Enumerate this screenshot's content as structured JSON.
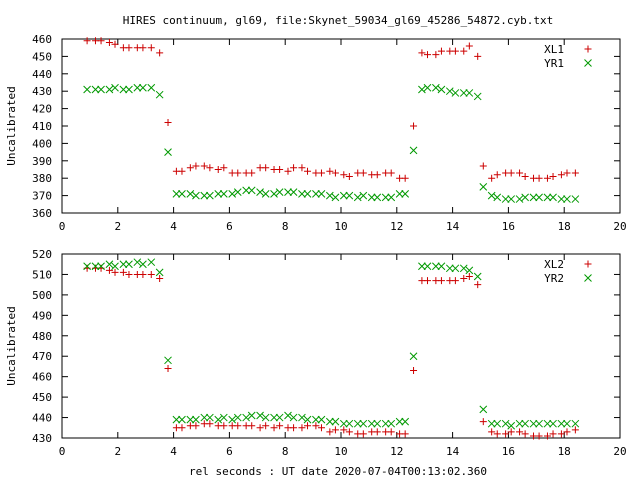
{
  "title": "HIRES continuum, gl69, file:Skynet_59034_gl69_45286_54872.cyb.txt",
  "xlabel": "rel seconds : UT date 2020-07-04T00:13:02.360",
  "chart_data": [
    {
      "type": "scatter",
      "ylabel": "Uncalibrated",
      "xlim": [
        0,
        20
      ],
      "ylim": [
        360,
        460
      ],
      "xticks": [
        0,
        2,
        4,
        6,
        8,
        10,
        12,
        14,
        16,
        18,
        20
      ],
      "yticks": [
        360,
        370,
        380,
        390,
        400,
        410,
        420,
        430,
        440,
        450,
        460
      ],
      "grid": false,
      "legend": "top-right",
      "series": [
        {
          "name": "XL1",
          "color": "#cc0000",
          "marker": "plus",
          "x": [
            0.9,
            1.2,
            1.4,
            1.7,
            1.9,
            2.2,
            2.4,
            2.7,
            2.9,
            3.2,
            3.5,
            3.8,
            4.1,
            4.3,
            4.6,
            4.8,
            5.1,
            5.3,
            5.6,
            5.8,
            6.1,
            6.3,
            6.6,
            6.8,
            7.1,
            7.3,
            7.6,
            7.8,
            8.1,
            8.3,
            8.6,
            8.8,
            9.1,
            9.3,
            9.6,
            9.8,
            10.1,
            10.3,
            10.6,
            10.8,
            11.1,
            11.3,
            11.6,
            11.8,
            12.1,
            12.3,
            12.6,
            12.9,
            13.1,
            13.4,
            13.6,
            13.9,
            14.1,
            14.4,
            14.6,
            14.9,
            15.1,
            15.4,
            15.6,
            15.9,
            16.1,
            16.4,
            16.6,
            16.9,
            17.1,
            17.4,
            17.6,
            17.9,
            18.1,
            18.4
          ],
          "y": [
            459,
            459,
            459,
            458,
            457,
            455,
            455,
            455,
            455,
            455,
            452,
            412,
            384,
            384,
            386,
            387,
            387,
            386,
            385,
            386,
            383,
            383,
            383,
            383,
            386,
            386,
            385,
            385,
            384,
            386,
            386,
            384,
            383,
            383,
            384,
            383,
            382,
            381,
            383,
            383,
            382,
            382,
            383,
            383,
            380,
            380,
            410,
            452,
            451,
            451,
            453,
            453,
            453,
            453,
            456,
            450,
            387,
            380,
            382,
            383,
            383,
            383,
            381,
            380,
            380,
            380,
            381,
            382,
            383,
            383
          ]
        },
        {
          "name": "YR1",
          "color": "#009900",
          "marker": "x",
          "x": [
            0.9,
            1.2,
            1.4,
            1.7,
            1.9,
            2.2,
            2.4,
            2.7,
            2.9,
            3.2,
            3.5,
            3.8,
            4.1,
            4.3,
            4.6,
            4.8,
            5.1,
            5.3,
            5.6,
            5.8,
            6.1,
            6.3,
            6.6,
            6.8,
            7.1,
            7.3,
            7.6,
            7.8,
            8.1,
            8.3,
            8.6,
            8.8,
            9.1,
            9.3,
            9.6,
            9.8,
            10.1,
            10.3,
            10.6,
            10.8,
            11.1,
            11.3,
            11.6,
            11.8,
            12.1,
            12.3,
            12.6,
            12.9,
            13.1,
            13.4,
            13.6,
            13.9,
            14.1,
            14.4,
            14.6,
            14.9,
            15.1,
            15.4,
            15.6,
            15.9,
            16.1,
            16.4,
            16.6,
            16.9,
            17.1,
            17.4,
            17.6,
            17.9,
            18.1,
            18.4
          ],
          "y": [
            431,
            431,
            431,
            431,
            432,
            431,
            431,
            432,
            432,
            432,
            428,
            395,
            371,
            371,
            371,
            370,
            370,
            370,
            371,
            371,
            371,
            372,
            373,
            373,
            372,
            371,
            371,
            372,
            372,
            372,
            371,
            371,
            371,
            371,
            370,
            369,
            370,
            370,
            369,
            370,
            369,
            369,
            369,
            369,
            371,
            371,
            396,
            431,
            432,
            432,
            431,
            430,
            429,
            429,
            429,
            427,
            375,
            370,
            369,
            368,
            368,
            368,
            369,
            369,
            369,
            369,
            369,
            368,
            368,
            368
          ]
        }
      ]
    },
    {
      "type": "scatter",
      "ylabel": "Uncalibrated",
      "xlim": [
        0,
        20
      ],
      "ylim": [
        430,
        520
      ],
      "xticks": [
        0,
        2,
        4,
        6,
        8,
        10,
        12,
        14,
        16,
        18,
        20
      ],
      "yticks": [
        430,
        440,
        450,
        460,
        470,
        480,
        490,
        500,
        510,
        520
      ],
      "grid": false,
      "legend": "top-right",
      "series": [
        {
          "name": "XL2",
          "color": "#cc0000",
          "marker": "plus",
          "x": [
            0.9,
            1.2,
            1.4,
            1.7,
            1.9,
            2.2,
            2.4,
            2.7,
            2.9,
            3.2,
            3.5,
            3.8,
            4.1,
            4.3,
            4.6,
            4.8,
            5.1,
            5.3,
            5.6,
            5.8,
            6.1,
            6.3,
            6.6,
            6.8,
            7.1,
            7.3,
            7.6,
            7.8,
            8.1,
            8.3,
            8.6,
            8.8,
            9.1,
            9.3,
            9.6,
            9.8,
            10.1,
            10.3,
            10.6,
            10.8,
            11.1,
            11.3,
            11.6,
            11.8,
            12.1,
            12.3,
            12.6,
            12.9,
            13.1,
            13.4,
            13.6,
            13.9,
            14.1,
            14.4,
            14.6,
            14.9,
            15.1,
            15.4,
            15.6,
            15.9,
            16.1,
            16.4,
            16.6,
            16.9,
            17.1,
            17.4,
            17.6,
            17.9,
            18.1,
            18.4
          ],
          "y": [
            513,
            513,
            513,
            512,
            511,
            511,
            510,
            510,
            510,
            510,
            508,
            464,
            435,
            435,
            436,
            436,
            437,
            437,
            436,
            436,
            436,
            436,
            436,
            436,
            435,
            436,
            435,
            436,
            435,
            435,
            435,
            436,
            436,
            435,
            433,
            434,
            434,
            433,
            432,
            432,
            433,
            433,
            433,
            433,
            432,
            432,
            463,
            507,
            507,
            507,
            507,
            507,
            507,
            508,
            509,
            505,
            438,
            433,
            432,
            432,
            433,
            433,
            432,
            431,
            431,
            431,
            432,
            432,
            433,
            434
          ]
        },
        {
          "name": "YR2",
          "color": "#009900",
          "marker": "x",
          "x": [
            0.9,
            1.2,
            1.4,
            1.7,
            1.9,
            2.2,
            2.4,
            2.7,
            2.9,
            3.2,
            3.5,
            3.8,
            4.1,
            4.3,
            4.6,
            4.8,
            5.1,
            5.3,
            5.6,
            5.8,
            6.1,
            6.3,
            6.6,
            6.8,
            7.1,
            7.3,
            7.6,
            7.8,
            8.1,
            8.3,
            8.6,
            8.8,
            9.1,
            9.3,
            9.6,
            9.8,
            10.1,
            10.3,
            10.6,
            10.8,
            11.1,
            11.3,
            11.6,
            11.8,
            12.1,
            12.3,
            12.6,
            12.9,
            13.1,
            13.4,
            13.6,
            13.9,
            14.1,
            14.4,
            14.6,
            14.9,
            15.1,
            15.4,
            15.6,
            15.9,
            16.1,
            16.4,
            16.6,
            16.9,
            17.1,
            17.4,
            17.6,
            17.9,
            18.1,
            18.4
          ],
          "y": [
            514,
            514,
            514,
            515,
            514,
            515,
            515,
            516,
            515,
            516,
            511,
            468,
            439,
            439,
            439,
            439,
            440,
            440,
            439,
            440,
            439,
            440,
            440,
            441,
            441,
            440,
            440,
            440,
            441,
            440,
            440,
            439,
            439,
            439,
            438,
            438,
            437,
            437,
            437,
            437,
            437,
            437,
            437,
            437,
            438,
            438,
            470,
            514,
            514,
            514,
            514,
            513,
            513,
            513,
            512,
            509,
            444,
            437,
            437,
            437,
            436,
            437,
            437,
            437,
            437,
            437,
            437,
            437,
            437,
            437
          ]
        }
      ]
    }
  ]
}
